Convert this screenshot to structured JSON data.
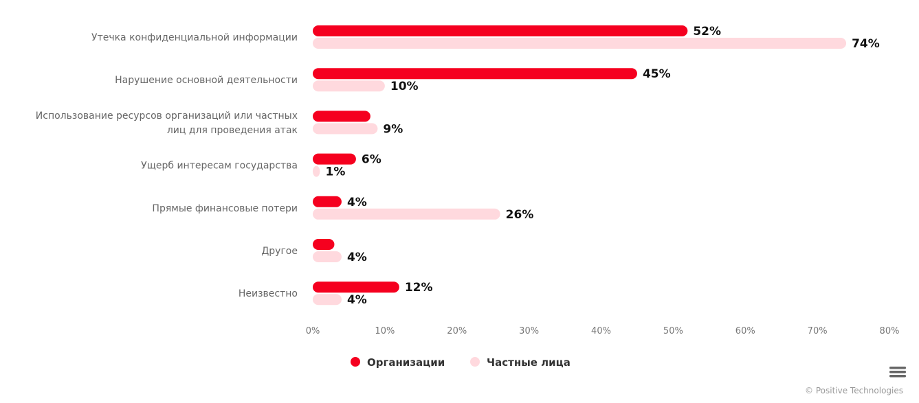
{
  "chart_data": {
    "type": "bar",
    "orientation": "horizontal",
    "categories": [
      [
        "Утечка конфиденциальной информации"
      ],
      [
        "Нарушение основной деятельности"
      ],
      [
        "Использование ресурсов организаций или частных",
        "лиц для проведения атак"
      ],
      [
        "Ущерб интересам государства"
      ],
      [
        "Прямые финансовые потери"
      ],
      [
        "Другое"
      ],
      [
        "Неизвестно"
      ]
    ],
    "series": [
      {
        "name": "Организации",
        "color": "#f5001f",
        "values": [
          52,
          45,
          8,
          6,
          4,
          3,
          12
        ],
        "labels": [
          "52%",
          "45%",
          null,
          "6%",
          "4%",
          null,
          "12%"
        ]
      },
      {
        "name": "Частные лица",
        "color": "#ffd9de",
        "values": [
          74,
          10,
          9,
          1,
          26,
          4,
          4
        ],
        "labels": [
          "74%",
          "10%",
          "9%",
          "1%",
          "26%",
          "4%",
          "4%"
        ]
      }
    ],
    "xlim": [
      0,
      80
    ],
    "xticks": [
      "0%",
      "10%",
      "20%",
      "30%",
      "40%",
      "50%",
      "60%",
      "70%",
      "80%"
    ],
    "legend": "bottom-center",
    "grid": false
  },
  "credit": "© Positive Technologies",
  "menu_icon": "hamburger-menu-icon"
}
